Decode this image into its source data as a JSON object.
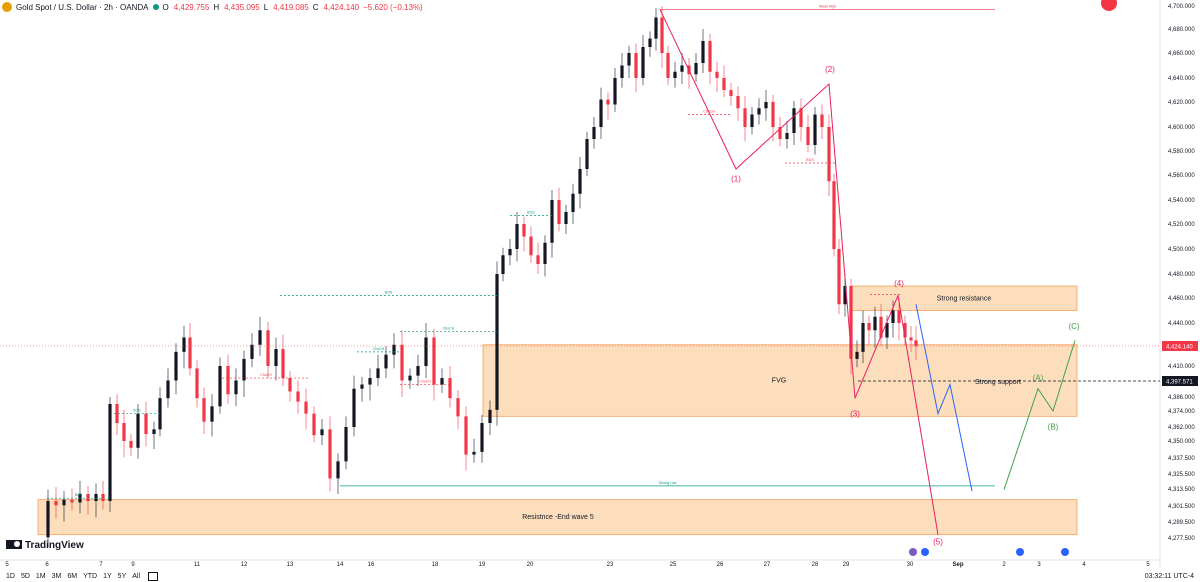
{
  "header": {
    "title": "Gold Spot / U.S. Dollar · 2h · OANDA",
    "open_label": "O",
    "open": "4,429.755",
    "high_label": "H",
    "high": "4,435.095",
    "low_label": "L",
    "low": "4,419.085",
    "close_label": "C",
    "close": "4,424.140",
    "change": "−5.620 (−0.13%)"
  },
  "footer": {
    "timeframes": [
      "1D",
      "5D",
      "1M",
      "3M",
      "6M",
      "YTD",
      "1Y",
      "5Y",
      "All"
    ],
    "clock": "03:32:11 UTC-4"
  },
  "brand": "TradingView",
  "colors": {
    "up": "#089981",
    "down": "#f23645",
    "zone": "#fcd8b0",
    "zone_border": "#f5a15a",
    "wave": "#e91e63",
    "projection_blue": "#2962ff",
    "projection_green": "#43a047"
  },
  "chart_data": {
    "type": "candlestick",
    "symbol": "Gold Spot / U.S. Dollar",
    "interval": "2h",
    "x_ticks": [
      "5",
      "6",
      "7",
      "9",
      "11",
      "12",
      "13",
      "14",
      "16",
      "18",
      "19",
      "20",
      "23",
      "25",
      "26",
      "27",
      "28",
      "29",
      "30",
      "Sep",
      "2",
      "3",
      "4",
      "5",
      "8"
    ],
    "y_ticks": [
      "4,700.000",
      "4,680.000",
      "4,660.000",
      "4,640.000",
      "4,620.000",
      "4,600.000",
      "4,580.000",
      "4,560.000",
      "4,540.000",
      "4,520.000",
      "4,500.000",
      "4,480.000",
      "4,460.000",
      "4,440.000",
      "4,424.140",
      "4,410.000",
      "4,397.571",
      "4,386.000",
      "4,374.000",
      "4,362.000",
      "4,350.000",
      "4,337.500",
      "4,325.500",
      "4,313.500",
      "4,301.500",
      "4,289.500",
      "4,277.500"
    ],
    "last_price": "4,424.140",
    "marked_price": "4,397.571",
    "zones": [
      {
        "label": "Strong resistance",
        "top": 4470,
        "bottom": 4450
      },
      {
        "label": "FVG",
        "top": 4425,
        "bottom": 4370
      },
      {
        "label": "Resistnce -End wave 5",
        "top": 4306,
        "bottom": 4280
      }
    ],
    "annotations": [
      "Strong support"
    ],
    "wave_labels": [
      "(1)",
      "(2)",
      "(3)",
      "(4)",
      "(5)",
      "(A)",
      "(B)",
      "(C)"
    ],
    "structure_labels": [
      "BOS",
      "ChoCH",
      "Weak High",
      "Strong Low"
    ]
  }
}
